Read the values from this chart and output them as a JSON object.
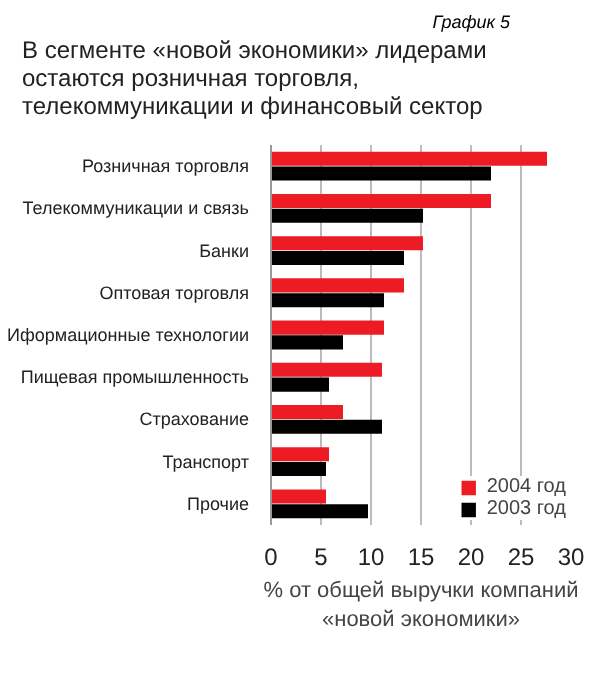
{
  "chart_data": {
    "type": "bar",
    "orientation": "horizontal",
    "title": "В сегменте «новой экономики» лидерами остаются розничная торговля, телекоммуникации и финансовый сектор",
    "annotations": [
      "График 5"
    ],
    "categories": [
      "Розничная торговля",
      "Телекоммуникации и связь",
      "Банки",
      "Оптовая торговля",
      "Иформационные технологии",
      "Пищевая промышленность",
      "Страхование",
      "Транспорт",
      "Прочие"
    ],
    "series": [
      {
        "name": "2004 год",
        "color": "#ed1c24",
        "values": [
          27.6,
          22.0,
          15.2,
          13.3,
          11.3,
          11.1,
          7.2,
          5.8,
          5.5
        ]
      },
      {
        "name": "2003 год",
        "color": "#000000",
        "values": [
          22.0,
          15.2,
          13.3,
          11.3,
          7.2,
          5.8,
          11.1,
          5.5,
          9.7
        ]
      }
    ],
    "xlabel": "% от общей выручки компаний «новой экономики»",
    "xlim": [
      0,
      30
    ],
    "xticks": [
      0,
      5,
      10,
      15,
      20,
      25,
      30
    ],
    "grid": "x",
    "legend": "bottom right"
  }
}
